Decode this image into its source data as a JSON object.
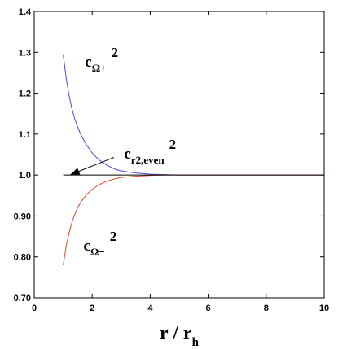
{
  "chart_data": {
    "type": "line",
    "title": "",
    "xlabel": {
      "main": "r / r",
      "sub": "h"
    },
    "ylabel": "",
    "xlim": [
      0,
      10
    ],
    "ylim": [
      0.7,
      1.4
    ],
    "grid": false,
    "x_ticks": [
      0,
      2,
      4,
      6,
      8,
      10
    ],
    "x_tick_labels": [
      "0",
      "2",
      "4",
      "6",
      "8",
      "10"
    ],
    "y_ticks": [
      0.7,
      0.8,
      0.9,
      1.0,
      1.1,
      1.2,
      1.3,
      1.4
    ],
    "y_tick_labels": [
      "0.70",
      "0.80",
      "0.90",
      "1.0",
      "1.1",
      "1.2",
      "1.3",
      "1.4"
    ],
    "series": [
      {
        "color": "#4a4ae0",
        "x": [
          1.0,
          1.1,
          1.2,
          1.3,
          1.4,
          1.5,
          1.6,
          1.8,
          2.0,
          2.2,
          2.5,
          2.8,
          3.0,
          3.5,
          4.0,
          4.5,
          5.0,
          6.0,
          7.0,
          8.0,
          9.0,
          10.0
        ],
        "y": [
          1.295,
          1.238,
          1.195,
          1.162,
          1.137,
          1.117,
          1.1,
          1.074,
          1.054,
          1.039,
          1.024,
          1.014,
          1.01,
          1.005,
          1.002,
          1.001,
          1.0,
          1.0,
          1.0,
          1.0,
          1.0,
          1.0
        ]
      },
      {
        "color": "#e04a2a",
        "x": [
          1.0,
          1.1,
          1.2,
          1.3,
          1.4,
          1.5,
          1.6,
          1.8,
          2.0,
          2.2,
          2.5,
          2.8,
          3.0,
          3.5,
          4.0,
          4.5,
          5.0,
          6.0,
          7.0,
          8.0,
          9.0,
          10.0
        ],
        "y": [
          0.78,
          0.825,
          0.858,
          0.884,
          0.904,
          0.92,
          0.933,
          0.952,
          0.965,
          0.975,
          0.985,
          0.991,
          0.994,
          0.997,
          0.999,
          1.0,
          1.0,
          1.0,
          1.0,
          1.0,
          1.0,
          1.0
        ]
      },
      {
        "color": "#000000",
        "x": [
          1.0,
          10.0
        ],
        "y": [
          1.0,
          1.0
        ]
      }
    ],
    "annotations": [
      {
        "id": "c-omega-plus",
        "base": "c",
        "sub": "Ω+",
        "sup": "2",
        "x": 1.75,
        "y": 1.265
      },
      {
        "id": "c-r2-even",
        "base": "c",
        "sub": "r2,even",
        "sup": "2",
        "x": 3.1,
        "y": 1.04
      },
      {
        "id": "c-omega-minus",
        "base": "c",
        "sub": "Ω−",
        "sup": "2",
        "x": 1.7,
        "y": 0.815
      }
    ],
    "arrow": {
      "from": [
        2.75,
        1.043
      ],
      "to": [
        1.25,
        1.001
      ]
    }
  }
}
